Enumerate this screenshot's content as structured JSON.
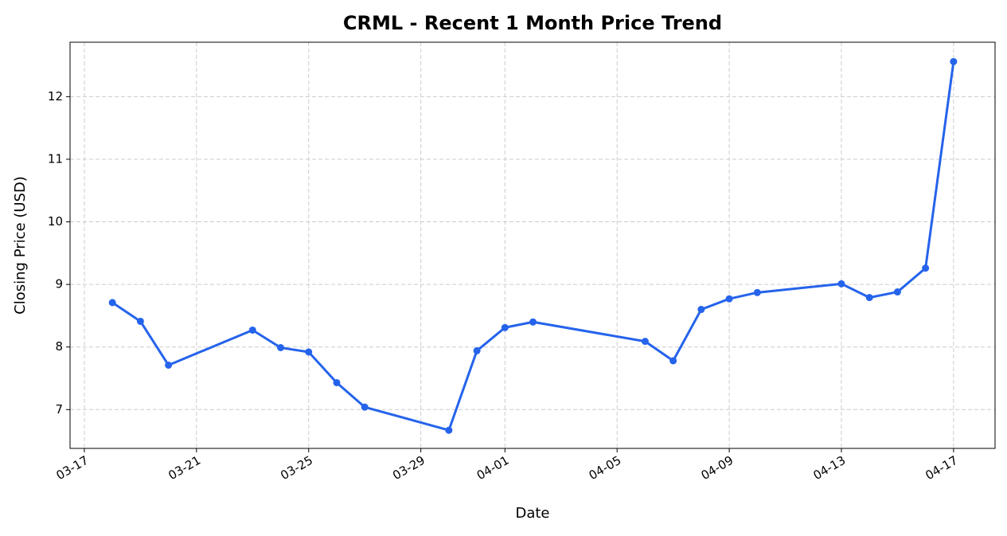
{
  "chart_data": {
    "type": "line",
    "title": "CRML - Recent 1 Month Price Trend",
    "x_label": "Date",
    "y_label": "Closing Price (USD)",
    "x": [
      "03-18",
      "03-19",
      "03-20",
      "03-23",
      "03-24",
      "03-25",
      "03-26",
      "03-27",
      "03-30",
      "03-31",
      "04-01",
      "04-02",
      "04-06",
      "04-07",
      "04-08",
      "04-09",
      "04-10",
      "04-13",
      "04-14",
      "04-15",
      "04-16",
      "04-17"
    ],
    "series": [
      {
        "name": "CRML",
        "color": "#2563eb",
        "values": [
          8.71,
          8.41,
          7.71,
          8.27,
          7.99,
          7.92,
          7.43,
          7.04,
          6.67,
          7.94,
          8.31,
          8.4,
          8.09,
          7.78,
          8.6,
          8.77,
          8.87,
          9.01,
          8.79,
          8.88,
          9.26,
          12.56
        ]
      }
    ],
    "xticks": [
      "03-17",
      "03-21",
      "03-25",
      "03-29",
      "04-01",
      "04-05",
      "04-09",
      "04-13",
      "04-17"
    ],
    "ylim": [
      6.38,
      12.87
    ],
    "yticks": [
      7,
      8,
      9,
      10,
      11,
      12
    ],
    "grid": true
  }
}
